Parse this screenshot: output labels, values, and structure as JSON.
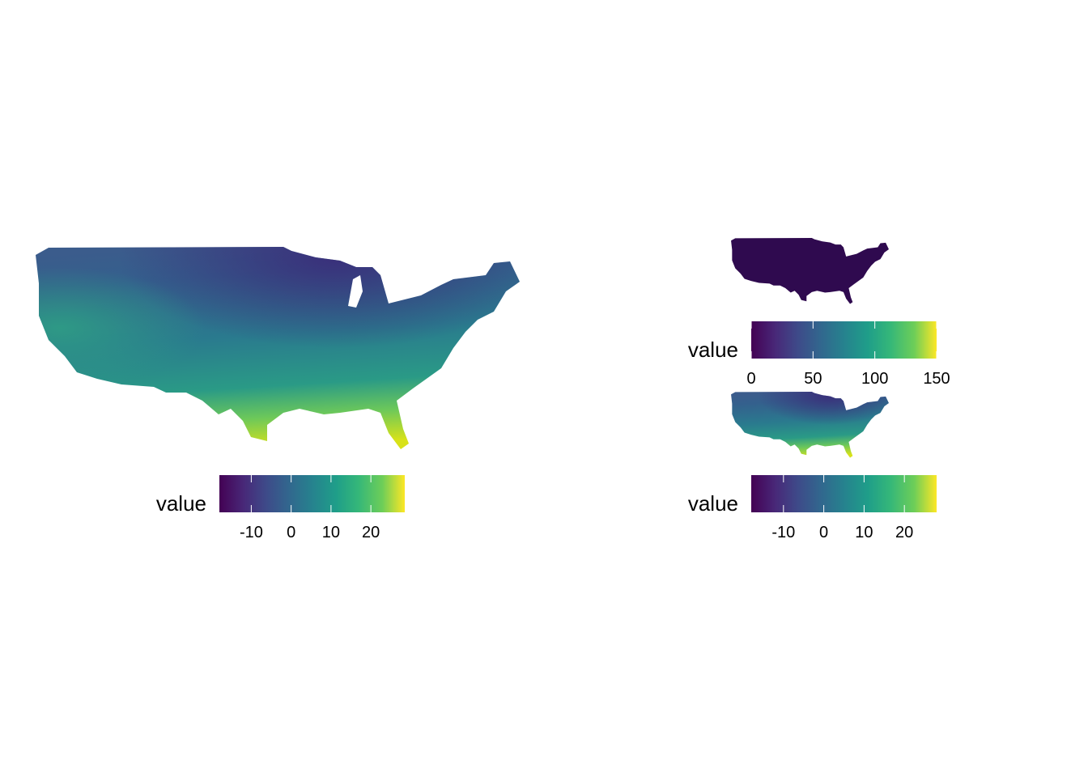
{
  "maps": [
    {
      "legend_title": "value",
      "lim": [
        -18,
        28.5
      ],
      "ticks": [
        -10,
        0,
        10,
        20
      ]
    },
    {
      "legend_title": "value",
      "lim": [
        0,
        150
      ],
      "ticks": [
        0,
        50,
        100,
        150
      ]
    },
    {
      "legend_title": "value",
      "lim": [
        -18,
        28
      ],
      "ticks": [
        -10,
        0,
        10,
        20
      ]
    }
  ]
}
